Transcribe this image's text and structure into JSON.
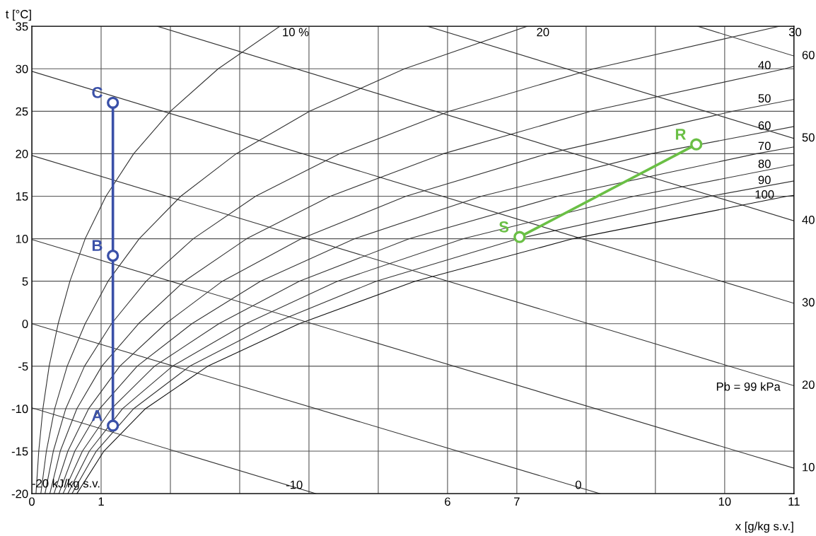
{
  "chart_data": {
    "type": "line",
    "xlabel": "x [g/kg s.v.]",
    "ylabel": "t [°C]",
    "xlim": [
      0,
      11
    ],
    "ylim": [
      -20,
      35
    ],
    "xticks": [
      0,
      1,
      {
        "value": 2,
        "label": null
      },
      {
        "value": 3,
        "label": null
      },
      {
        "value": 4,
        "label": null
      },
      {
        "value": 5,
        "label": null
      },
      6,
      7,
      {
        "value": 8,
        "label": null
      },
      {
        "value": 9,
        "label": null
      },
      10,
      11
    ],
    "yticks": [
      -20,
      -15,
      -10,
      -5,
      0,
      5,
      10,
      15,
      20,
      25,
      30,
      35
    ],
    "grid": true,
    "legend": false,
    "marker": "none",
    "line_style": "solid",
    "series": [
      {
        "color": "#333333",
        "x": [
          0.06,
          0.1,
          0.16,
          0.25,
          0.38,
          0.55,
          0.77,
          1.07,
          1.47,
          2.0,
          2.69,
          3.58
        ],
        "values": [
          -20,
          -15,
          -10,
          -5,
          0,
          5,
          10,
          15,
          20,
          25,
          30,
          35
        ]
      },
      {
        "color": "#333333",
        "x": [
          0.13,
          0.21,
          0.33,
          0.51,
          0.77,
          1.1,
          1.55,
          2.15,
          2.95,
          4.01,
          5.38,
          7.15
        ],
        "values": [
          -20,
          -15,
          -10,
          -5,
          0,
          5,
          10,
          15,
          20,
          25,
          30,
          35
        ]
      },
      {
        "color": "#333333",
        "x": [
          0.19,
          0.31,
          0.49,
          0.76,
          1.15,
          1.65,
          2.33,
          3.23,
          4.44,
          6.03,
          8.11,
          10.79
        ],
        "values": [
          -20,
          -15,
          -10,
          -5,
          0,
          5,
          10,
          15,
          20,
          25,
          30,
          35
        ]
      },
      {
        "color": "#333333",
        "x": [
          0.26,
          0.41,
          0.65,
          1.01,
          1.54,
          2.2,
          3.1,
          4.31,
          5.94,
          8.07,
          10.87,
          11
        ],
        "values": [
          -20,
          -15,
          -10,
          -5,
          0,
          5,
          10,
          15,
          20,
          25,
          30,
          30.3
        ]
      },
      {
        "color": "#333333",
        "x": [
          0.32,
          0.52,
          0.82,
          1.27,
          1.93,
          2.75,
          3.89,
          5.4,
          7.44,
          10.12,
          11
        ],
        "values": [
          -20,
          -15,
          -10,
          -5,
          0,
          5,
          10,
          15,
          20,
          25,
          26.4
        ]
      },
      {
        "color": "#333333",
        "x": [
          0.39,
          0.62,
          0.98,
          1.52,
          2.31,
          3.3,
          4.66,
          6.49,
          8.94,
          11
        ],
        "values": [
          -20,
          -15,
          -10,
          -5,
          0,
          5,
          10,
          15,
          20,
          23.2
        ]
      },
      {
        "color": "#333333",
        "x": [
          0.45,
          0.73,
          1.15,
          1.77,
          2.7,
          3.86,
          5.45,
          7.59,
          10.46,
          11
        ],
        "values": [
          -20,
          -15,
          -10,
          -5,
          0,
          5,
          10,
          15,
          20,
          20.8
        ]
      },
      {
        "color": "#333333",
        "x": [
          0.52,
          0.83,
          1.31,
          2.03,
          3.09,
          4.41,
          6.23,
          8.69,
          11
        ],
        "values": [
          -20,
          -15,
          -10,
          -5,
          0,
          5,
          10,
          15,
          18.7
        ]
      },
      {
        "color": "#333333",
        "x": [
          0.58,
          0.93,
          1.47,
          2.28,
          3.47,
          4.97,
          7.02,
          9.79,
          11
        ],
        "values": [
          -20,
          -15,
          -10,
          -5,
          0,
          5,
          10,
          15,
          16.8
        ]
      },
      {
        "color": "#111111",
        "x": [
          0.65,
          1.04,
          1.64,
          2.54,
          3.86,
          5.53,
          7.81,
          10.9,
          11
        ],
        "values": [
          -20,
          -15,
          -10,
          -5,
          0,
          5,
          10,
          15,
          15.1
        ]
      },
      {
        "color": "#333333",
        "x": [
          0,
          4.1
        ],
        "values": [
          -9.9,
          -20
        ]
      },
      {
        "color": "#333333",
        "x": [
          0,
          8.2
        ],
        "values": [
          0,
          -20
        ]
      },
      {
        "color": "#333333",
        "x": [
          0,
          11
        ],
        "values": [
          9.9,
          -17.0
        ]
      },
      {
        "color": "#333333",
        "x": [
          0,
          11
        ],
        "values": [
          19.8,
          -7.3
        ]
      },
      {
        "color": "#333333",
        "x": [
          0,
          11
        ],
        "values": [
          29.7,
          2.4
        ]
      },
      {
        "color": "#333333",
        "x": [
          1.81,
          11
        ],
        "values": [
          35,
          12.1
        ]
      },
      {
        "color": "#333333",
        "x": [
          5.71,
          11
        ],
        "values": [
          35,
          21.8
        ]
      },
      {
        "color": "#333333",
        "x": [
          9.61,
          11
        ],
        "values": [
          35,
          31.5
        ]
      },
      {
        "color": "#3a50a8",
        "marker": "circle",
        "x": [
          1.17,
          1.17,
          1.17
        ],
        "values": [
          -12,
          8,
          26
        ]
      },
      {
        "color": "#6abf45",
        "marker": "circle",
        "x": [
          7.04,
          9.59
        ],
        "values": [
          10.2,
          21.1
        ]
      }
    ],
    "annotations": [
      {
        "text": "A",
        "x": 1.17,
        "y": -12
      },
      {
        "text": "B",
        "x": 1.17,
        "y": 8
      },
      {
        "text": "C",
        "x": 1.17,
        "y": 26
      },
      {
        "text": "S",
        "x": 7.04,
        "y": 10.2
      },
      {
        "text": "R",
        "x": 9.59,
        "y": 21.1
      },
      {
        "text": "10 %",
        "x": 3.58,
        "y": 35
      },
      {
        "text": "20",
        "x": 7.15,
        "y": 35
      },
      {
        "text": "30",
        "x": 10.79,
        "y": 35
      },
      {
        "text": "40",
        "x": 11,
        "y": 30.3
      },
      {
        "text": "50",
        "x": 11,
        "y": 26.4
      },
      {
        "text": "60",
        "x": 11,
        "y": 23.2
      },
      {
        "text": "70",
        "x": 11,
        "y": 20.8
      },
      {
        "text": "80",
        "x": 11,
        "y": 18.7
      },
      {
        "text": "90",
        "x": 11,
        "y": 16.8
      },
      {
        "text": "100",
        "x": 11,
        "y": 15.1
      },
      {
        "text": "-10",
        "x": 4.1,
        "y": -20
      },
      {
        "text": "0",
        "x": 8.2,
        "y": -20
      },
      {
        "text": "10",
        "x": 11,
        "y": -17.0
      },
      {
        "text": "20",
        "x": 11,
        "y": -7.3
      },
      {
        "text": "30",
        "x": 11,
        "y": 2.4
      },
      {
        "text": "40",
        "x": 11,
        "y": 12.1
      },
      {
        "text": "50",
        "x": 11,
        "y": 21.8
      },
      {
        "text": "60",
        "x": 11,
        "y": 31.5
      },
      "-20 kJ/kg s.v.",
      "Pb = 99 kPa"
    ]
  }
}
